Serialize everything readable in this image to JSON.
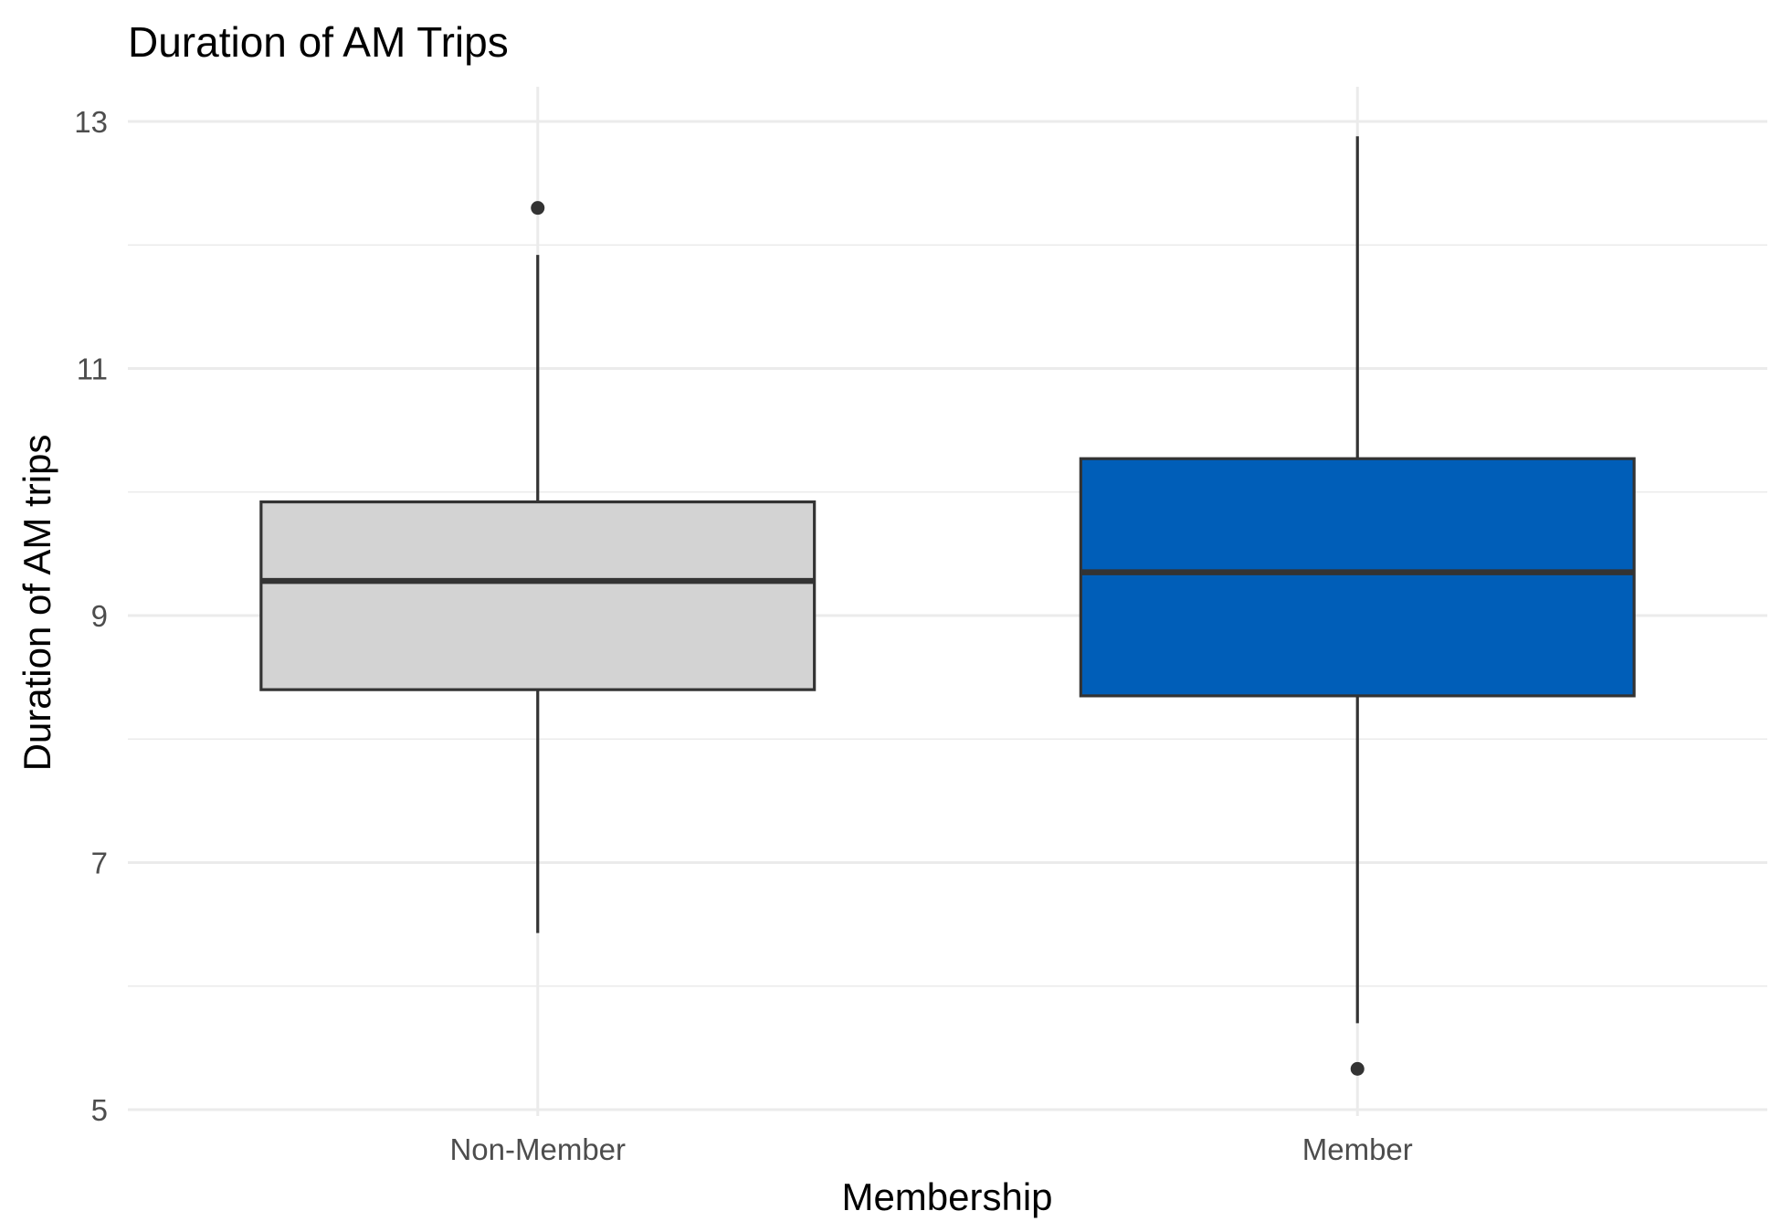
{
  "chart_data": {
    "type": "box",
    "title": "Duration of AM Trips",
    "xlabel": "Membership",
    "ylabel": "Duration of AM trips",
    "categories": [
      "Non-Member",
      "Member"
    ],
    "y_ticks": [
      "5",
      "7",
      "9",
      "11",
      "13"
    ],
    "ylim": [
      5,
      13
    ],
    "grid": true,
    "boxes": [
      {
        "category": "Non-Member",
        "whisker_low": 6.43,
        "q1": 8.4,
        "median": 9.28,
        "q3": 9.92,
        "whisker_high": 11.92,
        "outliers": [
          12.3
        ],
        "fill": "#d3d3d3"
      },
      {
        "category": "Member",
        "whisker_low": 5.7,
        "q1": 8.35,
        "median": 9.35,
        "q3": 10.27,
        "whisker_high": 12.88,
        "outliers": [
          5.33
        ],
        "fill": "#005eb8"
      }
    ]
  }
}
